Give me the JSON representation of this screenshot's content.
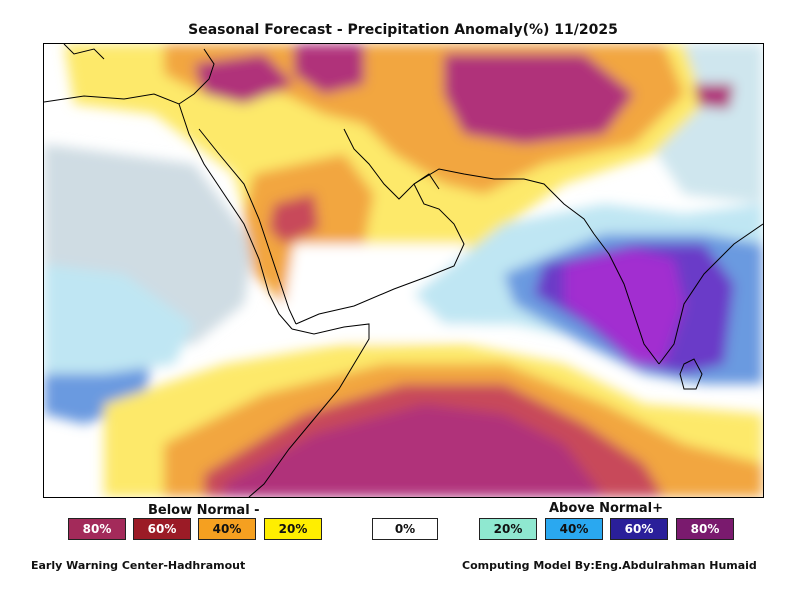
{
  "title": "Seasonal Forecast - Precipitation Anomaly(%) 11/2025",
  "legend": {
    "below_label": "Below Normal -",
    "above_label": "Above Normal+",
    "below": [
      {
        "label": "80%",
        "color": "#a32a5a",
        "text_color": "#ffffff"
      },
      {
        "label": "60%",
        "color": "#9b1b26",
        "text_color": "#ffffff"
      },
      {
        "label": "40%",
        "color": "#f5a020",
        "text_color": "#111111"
      },
      {
        "label": "20%",
        "color": "#ffee00",
        "text_color": "#111111"
      }
    ],
    "zero": {
      "label": "0%",
      "color": "#ffffff",
      "text_color": "#111111"
    },
    "above": [
      {
        "label": "20%",
        "color": "#8fe8d0",
        "text_color": "#111111"
      },
      {
        "label": "40%",
        "color": "#2aa8f0",
        "text_color": "#111111"
      },
      {
        "label": "60%",
        "color": "#2a1f9a",
        "text_color": "#ffffff"
      },
      {
        "label": "80%",
        "color": "#7a1a6e",
        "text_color": "#ffffff"
      }
    ]
  },
  "footer": {
    "left": "Early Warning Center-Hadhramout",
    "right": "Computing Model By:Eng.Abdulrahman Humaid"
  },
  "colors": {
    "magenta": "#b0307a",
    "red": "#c84a5a",
    "orange": "#f2a640",
    "yellow": "#fde96a",
    "light_blue": "#bfe6f3",
    "mid_blue": "#6a9ae0",
    "purple": "#6a3ac8",
    "violet": "#a22ed0",
    "grey_blue": "#cfdce3"
  }
}
